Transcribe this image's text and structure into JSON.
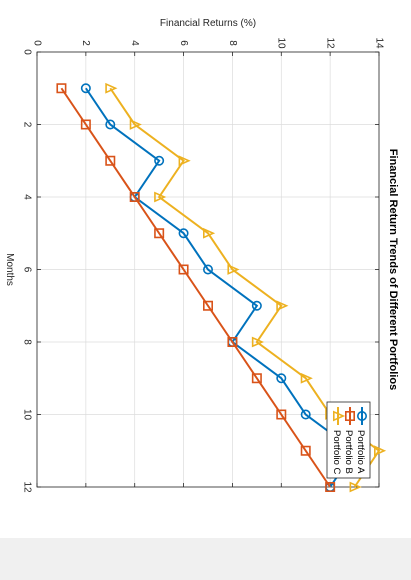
{
  "chart_data": {
    "type": "line",
    "title": "Financial Return Trends of Different Portfolios",
    "xlabel": "Months",
    "ylabel": "Financial Returns (%)",
    "xlim": [
      0,
      12
    ],
    "ylim": [
      0,
      14
    ],
    "xticks": [
      0,
      2,
      4,
      6,
      8,
      10,
      12
    ],
    "yticks": [
      0,
      2,
      4,
      6,
      8,
      10,
      12,
      14
    ],
    "grid": true,
    "legend_position": "bottom-right",
    "x": [
      1,
      2,
      3,
      4,
      5,
      6,
      7,
      8,
      9,
      10,
      11,
      12
    ],
    "series": [
      {
        "name": "Portfolio A",
        "color": "#0072BD",
        "marker": "circle",
        "values": [
          2,
          3,
          5,
          4,
          6,
          7,
          9,
          8,
          10,
          11,
          13,
          12
        ]
      },
      {
        "name": "Portfolio B",
        "color": "#D95319",
        "marker": "square",
        "values": [
          1,
          2,
          3,
          4,
          5,
          6,
          7,
          8,
          9,
          10,
          11,
          12
        ]
      },
      {
        "name": "Portfolio C",
        "color": "#EDB120",
        "marker": "triangle",
        "values": [
          3,
          4,
          6,
          5,
          7,
          8,
          10,
          9,
          11,
          12,
          14,
          13
        ]
      }
    ]
  }
}
